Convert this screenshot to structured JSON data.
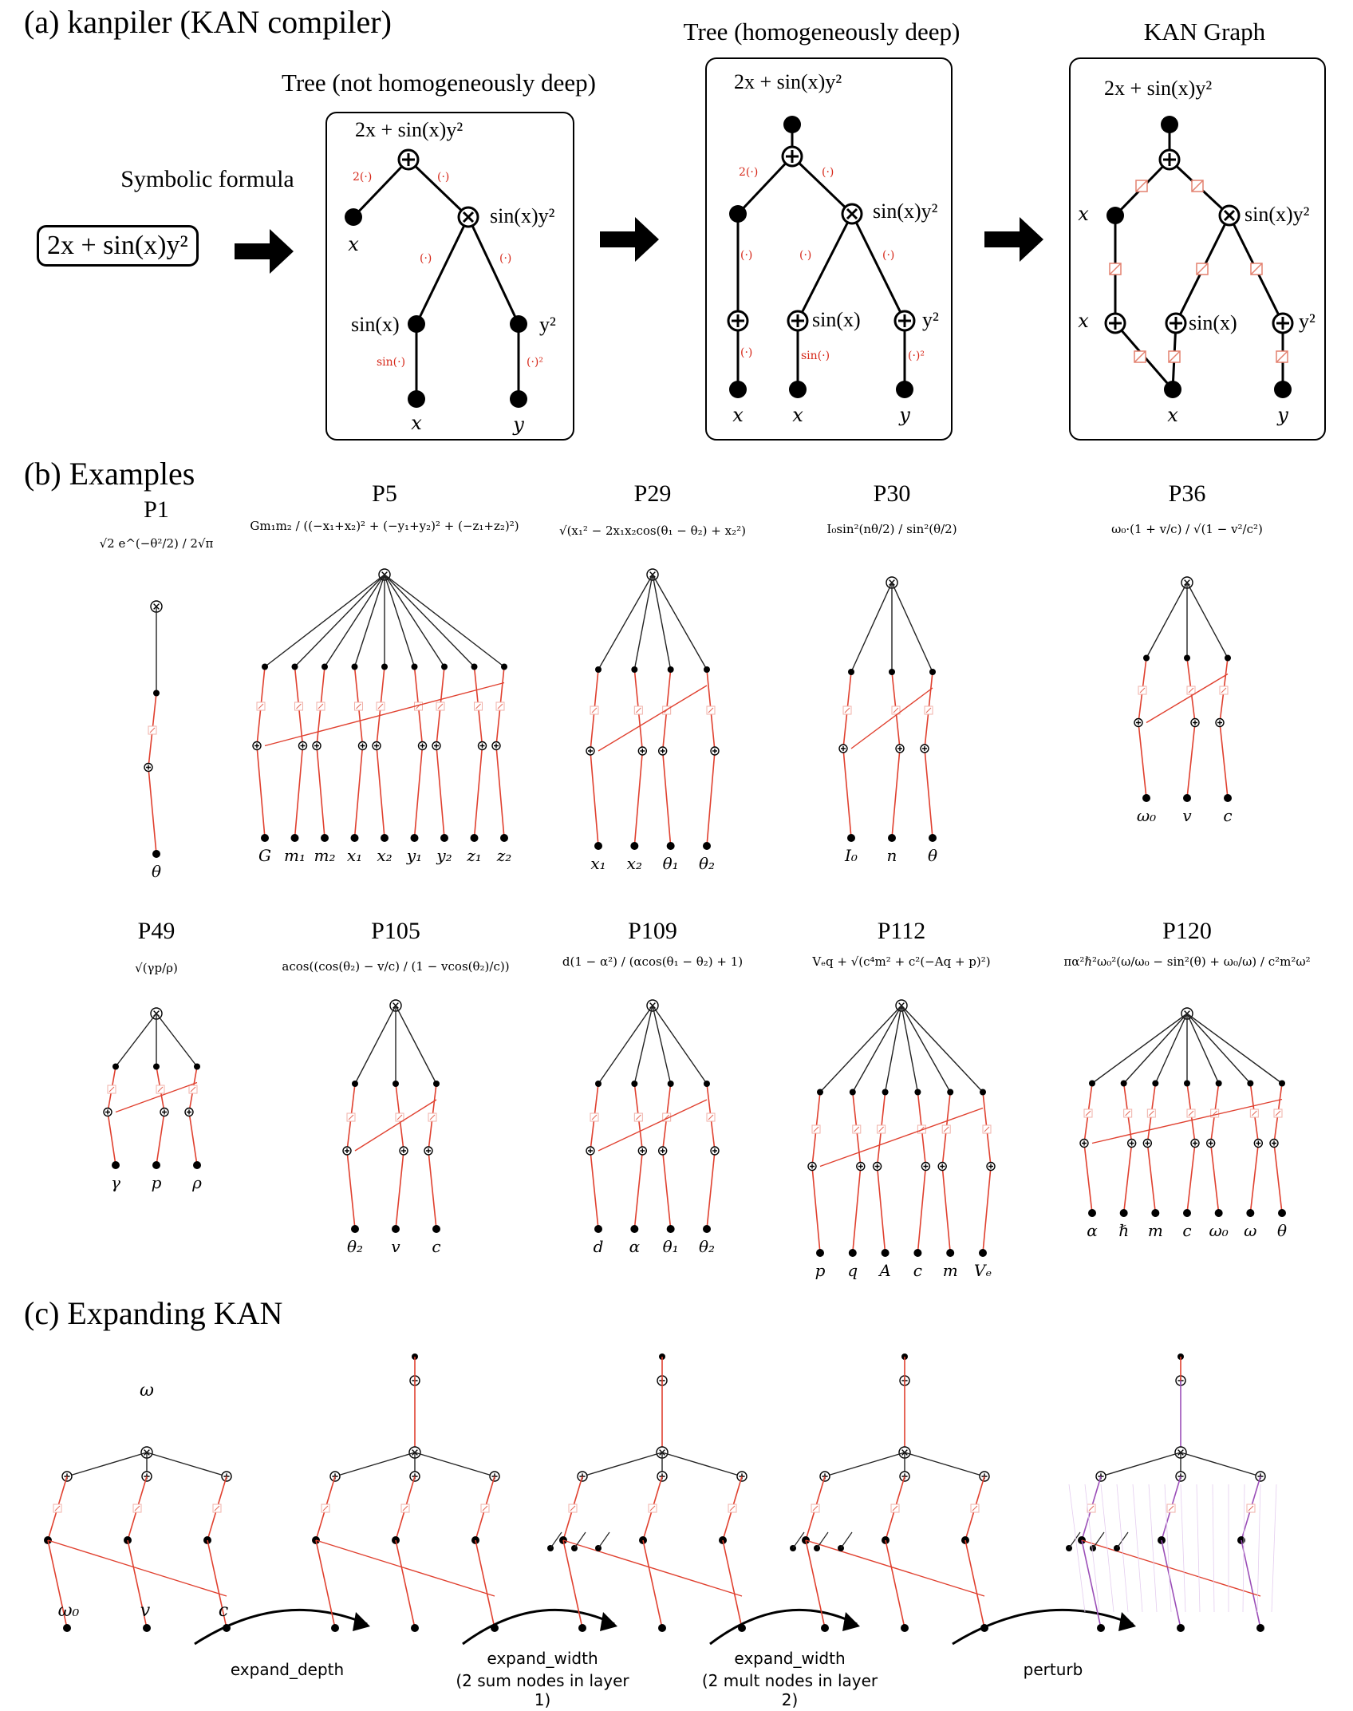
{
  "panel_a": {
    "title": "(a) kanpiler (KAN compiler)",
    "symbolic_label": "Symbolic formula",
    "formula": "2x + sin(x)y²",
    "tree1_title": "Tree (not homogeneously deep)",
    "tree2_title": "Tree (homogeneously deep)",
    "tree3_title": "KAN Graph",
    "root_expr": "2x + sin(x)y²",
    "sub_prod": "sin(x)y²",
    "sub_sin": "sin(x)",
    "sub_sq": "y²",
    "var_x": "x",
    "var_y": "y",
    "fn_2": "2(·)",
    "fn_id": "(·)",
    "fn_sin": "sin(·)",
    "fn_sq": "(·)²"
  },
  "panel_b": {
    "title": "(b) Examples",
    "examples": [
      {
        "name": "P1",
        "formula": "√2 e^(−θ²/2) / 2√π",
        "vars": [
          "θ"
        ]
      },
      {
        "name": "P5",
        "formula": "Gm₁m₂ / ((−x₁+x₂)² + (−y₁+y₂)² + (−z₁+z₂)²)",
        "vars": [
          "G",
          "m₁",
          "m₂",
          "x₁",
          "x₂",
          "y₁",
          "y₂",
          "z₁",
          "z₂"
        ]
      },
      {
        "name": "P29",
        "formula": "√(x₁² − 2x₁x₂cos(θ₁ − θ₂) + x₂²)",
        "vars": [
          "x₁",
          "x₂",
          "θ₁",
          "θ₂"
        ]
      },
      {
        "name": "P30",
        "formula": "I₀sin²(nθ/2) / sin²(θ/2)",
        "vars": [
          "I₀",
          "n",
          "θ"
        ]
      },
      {
        "name": "P36",
        "formula": "ω₀·(1 + v/c) / √(1 − v²/c²)",
        "vars": [
          "ω₀",
          "v",
          "c"
        ]
      },
      {
        "name": "P49",
        "formula": "√(γp/ρ)",
        "vars": [
          "γ",
          "p",
          "ρ"
        ]
      },
      {
        "name": "P105",
        "formula": "acos((cos(θ₂) − v/c) / (1 − vcos(θ₂)/c))",
        "vars": [
          "θ₂",
          "v",
          "c"
        ]
      },
      {
        "name": "P109",
        "formula": "d(1 − α²) / (αcos(θ₁ − θ₂) + 1)",
        "vars": [
          "d",
          "α",
          "θ₁",
          "θ₂"
        ]
      },
      {
        "name": "P112",
        "formula": "Vₑq + √(c⁴m² + c²(−Aq + p)²)",
        "vars": [
          "p",
          "q",
          "A",
          "c",
          "m",
          "Vₑ"
        ]
      },
      {
        "name": "P120",
        "formula": "πα²ℏ²ω₀²(ω/ω₀ − sin²(θ) + ω₀/ω) / c²m²ω²",
        "vars": [
          "α",
          "ℏ",
          "m",
          "c",
          "ω₀",
          "ω",
          "θ"
        ]
      }
    ]
  },
  "panel_c": {
    "title": "(c) Expanding KAN",
    "top_var": "ω",
    "vars": [
      "ω₀",
      "v",
      "c"
    ],
    "step1": "expand_depth",
    "step2_line1": "expand_width",
    "step2_line2": "(2 sum nodes in layer 1)",
    "step3_line1": "expand_width",
    "step3_line2": "(2 mult nodes in layer 2)",
    "step4": "perturb"
  },
  "colors": {
    "edge_red": "#e0402f",
    "edge_black": "#222222",
    "edge_purple": "#9b4fb8",
    "node": "#000000",
    "fn_red": "#d62718"
  }
}
